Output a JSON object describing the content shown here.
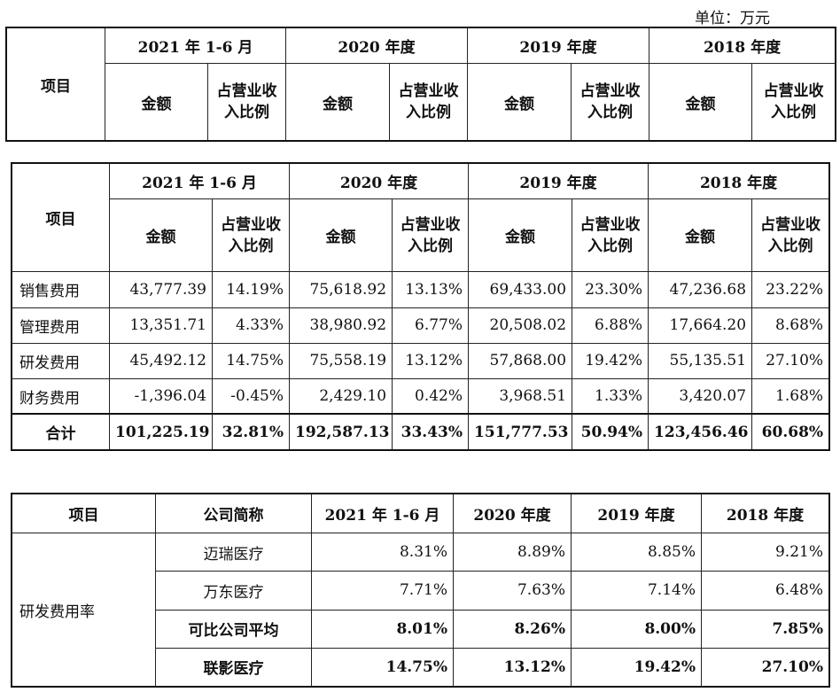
{
  "unit_label": "单位：万元",
  "header": {
    "item": "项目",
    "periods": [
      "2021 年 1-6 月",
      "2020 年度",
      "2019 年度",
      "2018 年度"
    ],
    "amount": "金额",
    "ratio": "占营业收入比例"
  },
  "expenses": {
    "rows": [
      {
        "name": "销售费用",
        "cells": [
          "43,777.39",
          "14.19%",
          "75,618.92",
          "13.13%",
          "69,433.00",
          "23.30%",
          "47,236.68",
          "23.22%"
        ]
      },
      {
        "name": "管理费用",
        "cells": [
          "13,351.71",
          "4.33%",
          "38,980.92",
          "6.77%",
          "20,508.02",
          "6.88%",
          "17,664.20",
          "8.68%"
        ]
      },
      {
        "name": "研发费用",
        "cells": [
          "45,492.12",
          "14.75%",
          "75,558.19",
          "13.12%",
          "57,868.00",
          "19.42%",
          "55,135.51",
          "27.10%"
        ]
      },
      {
        "name": "财务费用",
        "cells": [
          "-1,396.04",
          "-0.45%",
          "2,429.10",
          "0.42%",
          "3,968.51",
          "1.33%",
          "3,420.07",
          "1.68%"
        ]
      }
    ],
    "total": {
      "name": "合计",
      "cells": [
        "101,225.19",
        "32.81%",
        "192,587.13",
        "33.43%",
        "151,777.53",
        "50.94%",
        "123,456.46",
        "60.68%"
      ]
    }
  },
  "rd_compare": {
    "headers": [
      "项目",
      "公司简称",
      "2021 年 1-6 月",
      "2020 年度",
      "2019 年度",
      "2018 年度"
    ],
    "item_label": "研发费用率",
    "rows": [
      {
        "name": "迈瑞医疗",
        "bold": false,
        "cells": [
          "8.31%",
          "8.89%",
          "8.85%",
          "9.21%"
        ]
      },
      {
        "name": "万东医疗",
        "bold": false,
        "cells": [
          "7.71%",
          "7.63%",
          "7.14%",
          "6.48%"
        ]
      },
      {
        "name": "可比公司平均",
        "bold": true,
        "cells": [
          "8.01%",
          "8.26%",
          "8.00%",
          "7.85%"
        ]
      },
      {
        "name": "联影医疗",
        "bold": true,
        "cells": [
          "14.75%",
          "13.12%",
          "19.42%",
          "27.10%"
        ]
      }
    ]
  }
}
